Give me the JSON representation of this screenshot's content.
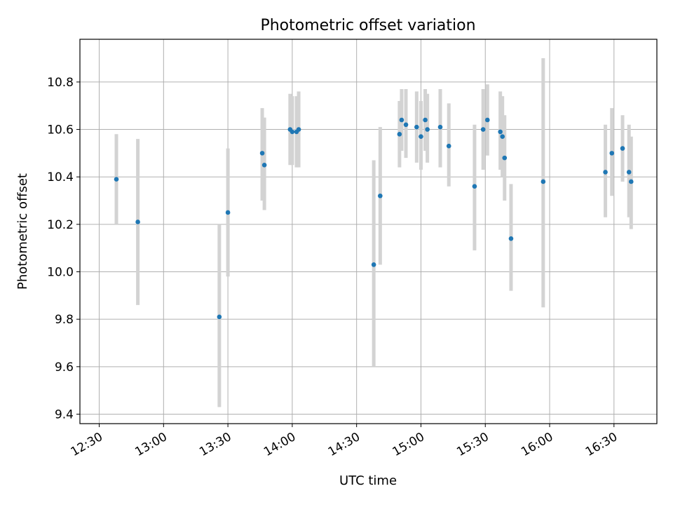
{
  "chart_data": {
    "type": "scatter",
    "title": "Photometric offset variation",
    "xlabel": "UTC time",
    "ylabel": "Photometric offset",
    "grid": true,
    "xlim": [
      "12:21",
      "16:50"
    ],
    "ylim": [
      9.36,
      10.98
    ],
    "x_ticks": [
      "12:30",
      "13:00",
      "13:30",
      "14:00",
      "14:30",
      "15:00",
      "15:30",
      "16:00",
      "16:30"
    ],
    "y_ticks": [
      "9.4",
      "9.6",
      "9.8",
      "10.0",
      "10.2",
      "10.4",
      "10.6",
      "10.8"
    ],
    "colors": {
      "point": "#1f77b4",
      "errorbar": "#d3d3d3",
      "grid": "#b0b0b0"
    },
    "points": [
      {
        "x": "12:38",
        "y": 10.39,
        "ylow": 10.2,
        "yhigh": 10.58
      },
      {
        "x": "12:48",
        "y": 10.21,
        "ylow": 9.86,
        "yhigh": 10.56
      },
      {
        "x": "13:26",
        "y": 9.81,
        "ylow": 9.43,
        "yhigh": 10.2
      },
      {
        "x": "13:30",
        "y": 10.25,
        "ylow": 9.98,
        "yhigh": 10.52
      },
      {
        "x": "13:46",
        "y": 10.5,
        "ylow": 10.3,
        "yhigh": 10.69
      },
      {
        "x": "13:47",
        "y": 10.45,
        "ylow": 10.26,
        "yhigh": 10.65
      },
      {
        "x": "13:59",
        "y": 10.6,
        "ylow": 10.45,
        "yhigh": 10.75
      },
      {
        "x": "14:00",
        "y": 10.59,
        "ylow": 10.45,
        "yhigh": 10.74
      },
      {
        "x": "14:02",
        "y": 10.59,
        "ylow": 10.44,
        "yhigh": 10.74
      },
      {
        "x": "14:03",
        "y": 10.6,
        "ylow": 10.44,
        "yhigh": 10.76
      },
      {
        "x": "14:38",
        "y": 10.03,
        "ylow": 9.6,
        "yhigh": 10.47
      },
      {
        "x": "14:41",
        "y": 10.32,
        "ylow": 10.03,
        "yhigh": 10.61
      },
      {
        "x": "14:50",
        "y": 10.58,
        "ylow": 10.44,
        "yhigh": 10.72
      },
      {
        "x": "14:51",
        "y": 10.64,
        "ylow": 10.51,
        "yhigh": 10.77
      },
      {
        "x": "14:53",
        "y": 10.62,
        "ylow": 10.48,
        "yhigh": 10.77
      },
      {
        "x": "14:58",
        "y": 10.61,
        "ylow": 10.46,
        "yhigh": 10.76
      },
      {
        "x": "15:00",
        "y": 10.57,
        "ylow": 10.43,
        "yhigh": 10.72
      },
      {
        "x": "15:02",
        "y": 10.64,
        "ylow": 10.51,
        "yhigh": 10.77
      },
      {
        "x": "15:03",
        "y": 10.6,
        "ylow": 10.46,
        "yhigh": 10.75
      },
      {
        "x": "15:09",
        "y": 10.61,
        "ylow": 10.44,
        "yhigh": 10.77
      },
      {
        "x": "15:13",
        "y": 10.53,
        "ylow": 10.36,
        "yhigh": 10.71
      },
      {
        "x": "15:25",
        "y": 10.36,
        "ylow": 10.09,
        "yhigh": 10.62
      },
      {
        "x": "15:29",
        "y": 10.6,
        "ylow": 10.43,
        "yhigh": 10.77
      },
      {
        "x": "15:31",
        "y": 10.64,
        "ylow": 10.49,
        "yhigh": 10.79
      },
      {
        "x": "15:37",
        "y": 10.59,
        "ylow": 10.43,
        "yhigh": 10.76
      },
      {
        "x": "15:38",
        "y": 10.57,
        "ylow": 10.4,
        "yhigh": 10.74
      },
      {
        "x": "15:39",
        "y": 10.48,
        "ylow": 10.3,
        "yhigh": 10.66
      },
      {
        "x": "15:42",
        "y": 10.14,
        "ylow": 9.92,
        "yhigh": 10.37
      },
      {
        "x": "15:57",
        "y": 10.38,
        "ylow": 9.85,
        "yhigh": 10.9
      },
      {
        "x": "16:26",
        "y": 10.42,
        "ylow": 10.23,
        "yhigh": 10.62
      },
      {
        "x": "16:29",
        "y": 10.5,
        "ylow": 10.32,
        "yhigh": 10.69
      },
      {
        "x": "16:34",
        "y": 10.52,
        "ylow": 10.38,
        "yhigh": 10.66
      },
      {
        "x": "16:37",
        "y": 10.42,
        "ylow": 10.23,
        "yhigh": 10.62
      },
      {
        "x": "16:38",
        "y": 10.38,
        "ylow": 10.18,
        "yhigh": 10.57
      }
    ]
  }
}
